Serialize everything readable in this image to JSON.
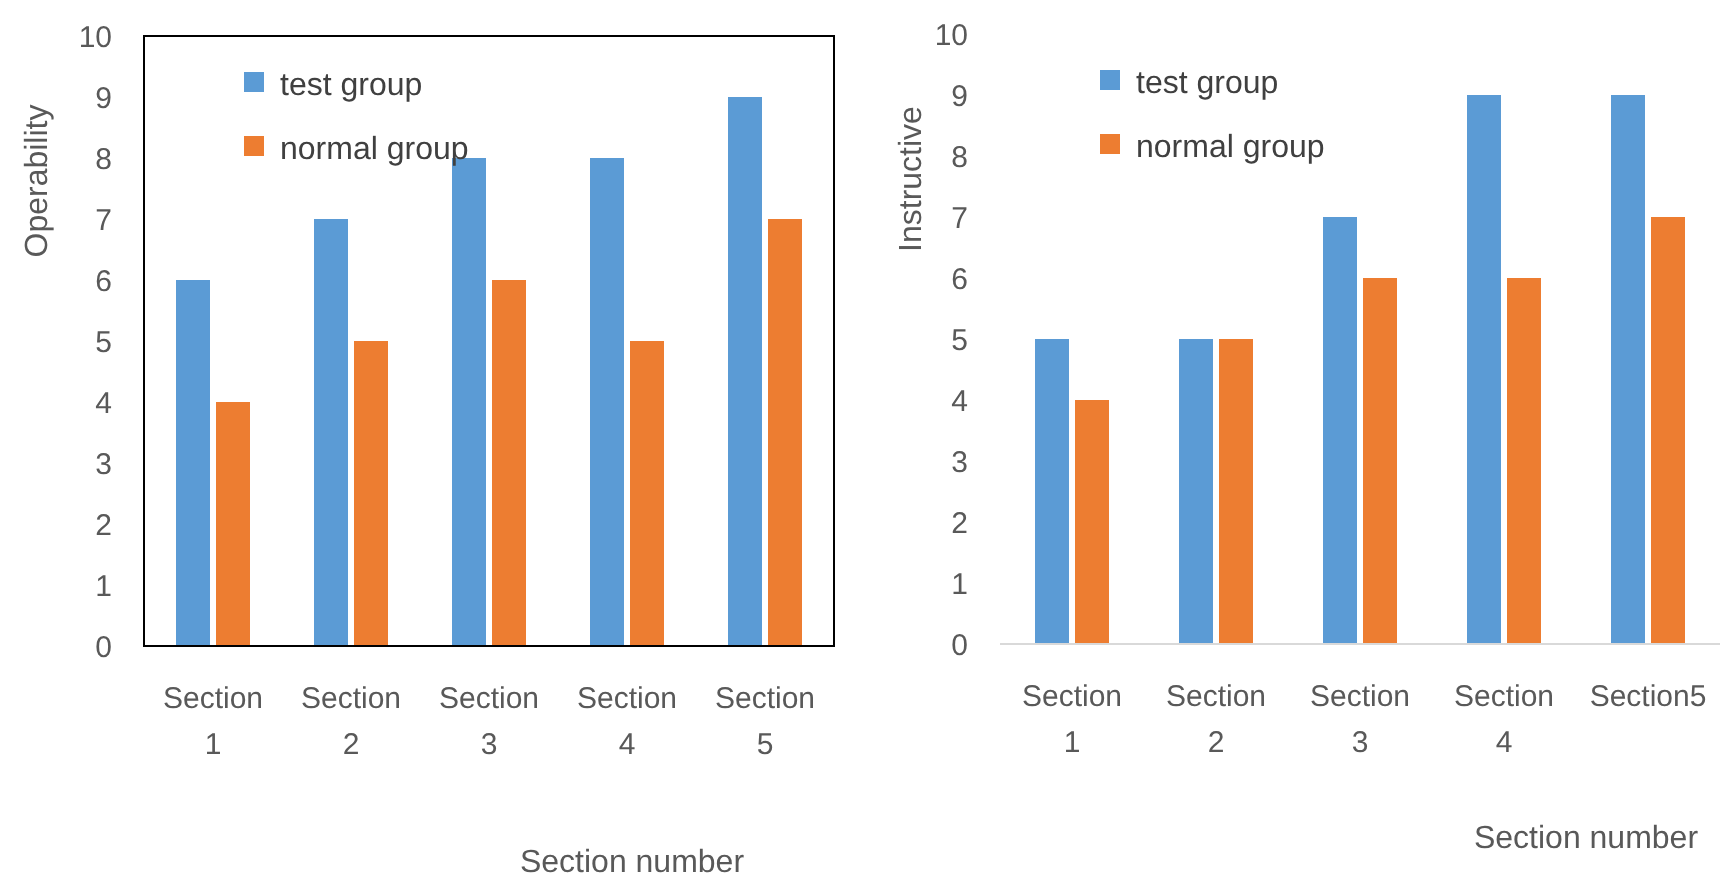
{
  "chart_data": [
    {
      "type": "bar",
      "categories": [
        "Section 1",
        "Section 2",
        "Section 3",
        "Section 4",
        "Section 5"
      ],
      "series": [
        {
          "name": "test group",
          "color": "#5b9bd5",
          "values": [
            6,
            7,
            8,
            8,
            9
          ]
        },
        {
          "name": "normal group",
          "color": "#ed7d31",
          "values": [
            4,
            5,
            6,
            5,
            7
          ]
        }
      ],
      "ylim": [
        0,
        10
      ],
      "yticks": [
        0,
        1,
        2,
        3,
        4,
        5,
        6,
        7,
        8,
        9,
        10
      ],
      "ylabel": "Operability",
      "xlabel": "Section number",
      "legend": "top left",
      "grid": false
    },
    {
      "type": "bar",
      "categories": [
        "Section 1",
        "Section 2",
        "Section 3",
        "Section 4",
        "Section5"
      ],
      "series": [
        {
          "name": "test group",
          "color": "#5b9bd5",
          "values": [
            5,
            5,
            7,
            9,
            9
          ]
        },
        {
          "name": "normal group",
          "color": "#ed7d31",
          "values": [
            4,
            5,
            6,
            6,
            7
          ]
        }
      ],
      "ylim": [
        0,
        10
      ],
      "yticks": [
        0,
        1,
        2,
        3,
        4,
        5,
        6,
        7,
        8,
        9,
        10
      ],
      "ylabel": "Instructive",
      "xlabel": "Section number",
      "legend": "top left",
      "grid": false
    }
  ]
}
